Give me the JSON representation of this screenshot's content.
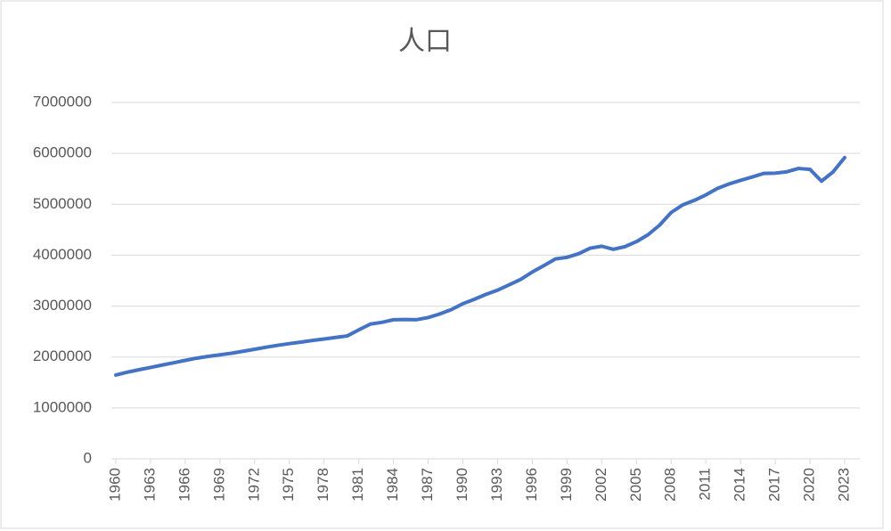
{
  "chart_data": {
    "type": "line",
    "title": "人口",
    "x": [
      1960,
      1961,
      1962,
      1963,
      1964,
      1965,
      1966,
      1967,
      1968,
      1969,
      1970,
      1971,
      1972,
      1973,
      1974,
      1975,
      1976,
      1977,
      1978,
      1979,
      1980,
      1981,
      1982,
      1983,
      1984,
      1985,
      1986,
      1987,
      1988,
      1989,
      1990,
      1991,
      1992,
      1993,
      1994,
      1995,
      1996,
      1997,
      1998,
      1999,
      2000,
      2001,
      2002,
      2003,
      2004,
      2005,
      2006,
      2007,
      2008,
      2009,
      2010,
      2011,
      2012,
      2013,
      2014,
      2015,
      2016,
      2017,
      2018,
      2019,
      2020,
      2021,
      2022,
      2023
    ],
    "series": [
      {
        "name": "人口",
        "color": "#4472c4",
        "values": [
          1646000,
          1702000,
          1750000,
          1795000,
          1842000,
          1887000,
          1934000,
          1978000,
          2012000,
          2043000,
          2074000,
          2113000,
          2152000,
          2193000,
          2230000,
          2263000,
          2293000,
          2325000,
          2354000,
          2384000,
          2414000,
          2533000,
          2647000,
          2681000,
          2732000,
          2736000,
          2733000,
          2775000,
          2846000,
          2931000,
          3047000,
          3135000,
          3231000,
          3313000,
          3419000,
          3525000,
          3670000,
          3796000,
          3927000,
          3958000,
          4028000,
          4138000,
          4176000,
          4115000,
          4167000,
          4266000,
          4401000,
          4589000,
          4839000,
          4988000,
          5077000,
          5184000,
          5312000,
          5399000,
          5470000,
          5535000,
          5607000,
          5612000,
          5638000,
          5704000,
          5686000,
          5454000,
          5637000,
          5918000
        ]
      }
    ],
    "xlim": [
      1960,
      2023
    ],
    "xticks": [
      1960,
      1963,
      1966,
      1969,
      1972,
      1975,
      1978,
      1981,
      1984,
      1987,
      1990,
      1993,
      1996,
      1999,
      2002,
      2005,
      2008,
      2011,
      2014,
      2017,
      2020,
      2023
    ],
    "ylim": [
      0,
      7000000
    ],
    "yticks": [
      0,
      1000000,
      2000000,
      3000000,
      4000000,
      5000000,
      6000000,
      7000000
    ],
    "grid": true
  }
}
